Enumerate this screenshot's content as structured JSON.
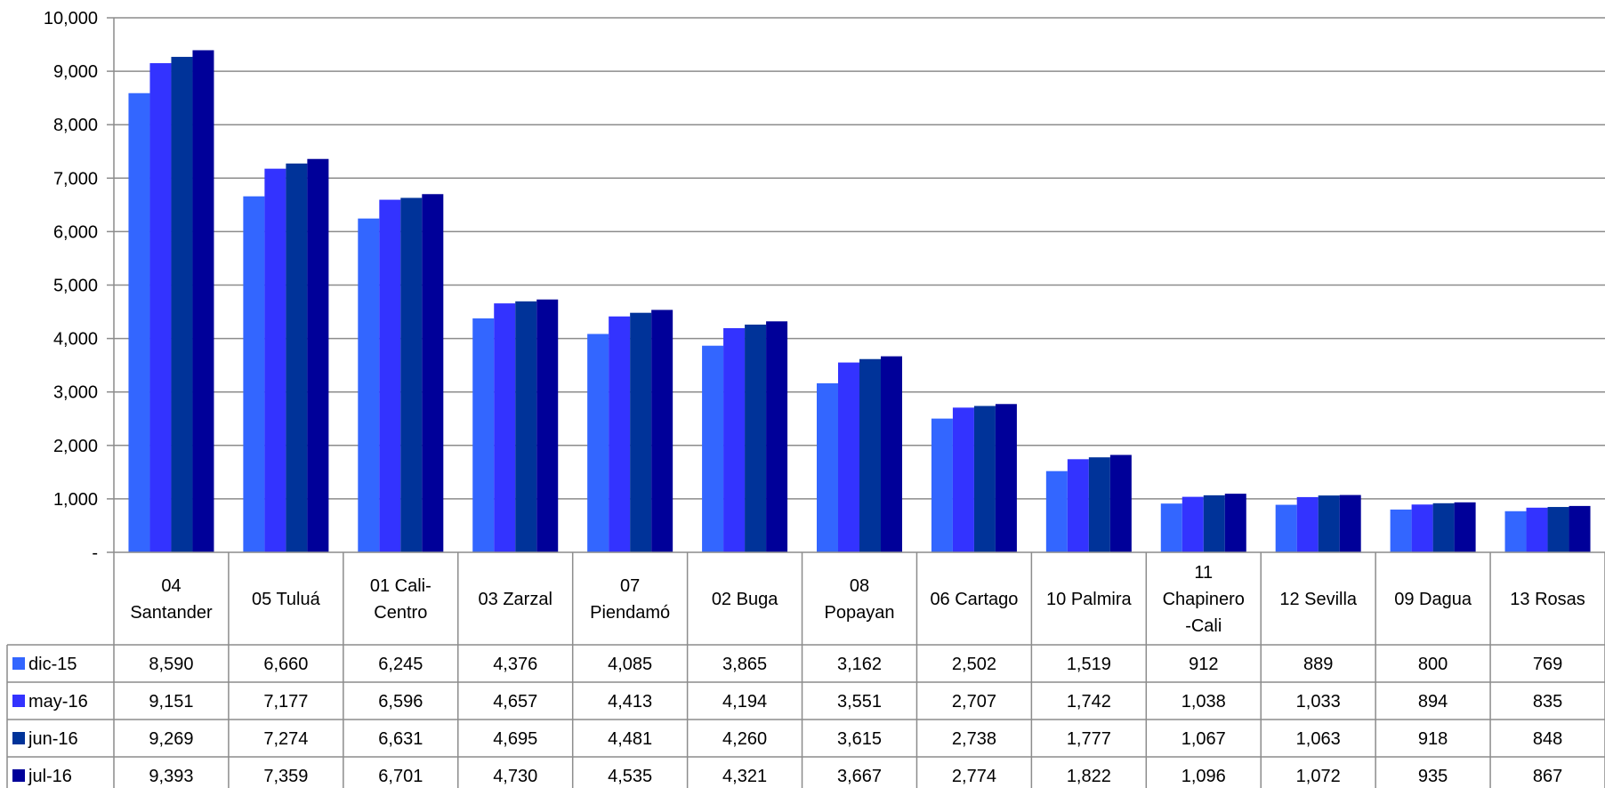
{
  "chart_data": {
    "type": "bar",
    "title": "",
    "xlabel": "",
    "ylabel": "",
    "ylim": [
      0,
      10000
    ],
    "y_ticks": [
      "-",
      "1,000",
      "2,000",
      "3,000",
      "4,000",
      "5,000",
      "6,000",
      "7,000",
      "8,000",
      "9,000",
      "10,000"
    ],
    "grid": true,
    "legend_placement": "data-table-left",
    "categories": [
      [
        "04",
        "Santander"
      ],
      [
        "05 Tuluá"
      ],
      [
        "01 Cali-",
        "Centro"
      ],
      [
        "03 Zarzal"
      ],
      [
        "07",
        "Piendamó"
      ],
      [
        "02 Buga"
      ],
      [
        "08",
        "Popayan"
      ],
      [
        "06 Cartago"
      ],
      [
        "10 Palmira"
      ],
      [
        "11",
        "Chapinero",
        "-Cali"
      ],
      [
        "12 Sevilla"
      ],
      [
        "09 Dagua"
      ],
      [
        "13 Rosas"
      ]
    ],
    "series": [
      {
        "name": "dic-15",
        "color": "#3366ff",
        "values": [
          8590,
          6660,
          6245,
          4376,
          4085,
          3865,
          3162,
          2502,
          1519,
          912,
          889,
          800,
          769
        ],
        "labels": [
          "8,590",
          "6,660",
          "6,245",
          "4,376",
          "4,085",
          "3,865",
          "3,162",
          "2,502",
          "1,519",
          "912",
          "889",
          "800",
          "769"
        ]
      },
      {
        "name": "may-16",
        "color": "#3333ff",
        "values": [
          9151,
          7177,
          6596,
          4657,
          4413,
          4194,
          3551,
          2707,
          1742,
          1038,
          1033,
          894,
          835
        ],
        "labels": [
          "9,151",
          "7,177",
          "6,596",
          "4,657",
          "4,413",
          "4,194",
          "3,551",
          "2,707",
          "1,742",
          "1,038",
          "1,033",
          "894",
          "835"
        ]
      },
      {
        "name": "jun-16",
        "color": "#003399",
        "values": [
          9269,
          7274,
          6631,
          4695,
          4481,
          4260,
          3615,
          2738,
          1777,
          1067,
          1063,
          918,
          848
        ],
        "labels": [
          "9,269",
          "7,274",
          "6,631",
          "4,695",
          "4,481",
          "4,260",
          "3,615",
          "2,738",
          "1,777",
          "1,067",
          "1,063",
          "918",
          "848"
        ]
      },
      {
        "name": "jul-16",
        "color": "#000099",
        "values": [
          9393,
          7359,
          6701,
          4730,
          4535,
          4321,
          3667,
          2774,
          1822,
          1096,
          1072,
          935,
          867
        ],
        "labels": [
          "9,393",
          "7,359",
          "6,701",
          "4,730",
          "4,535",
          "4,321",
          "3,667",
          "2,774",
          "1,822",
          "1,096",
          "1,072",
          "935",
          "867"
        ]
      }
    ]
  }
}
